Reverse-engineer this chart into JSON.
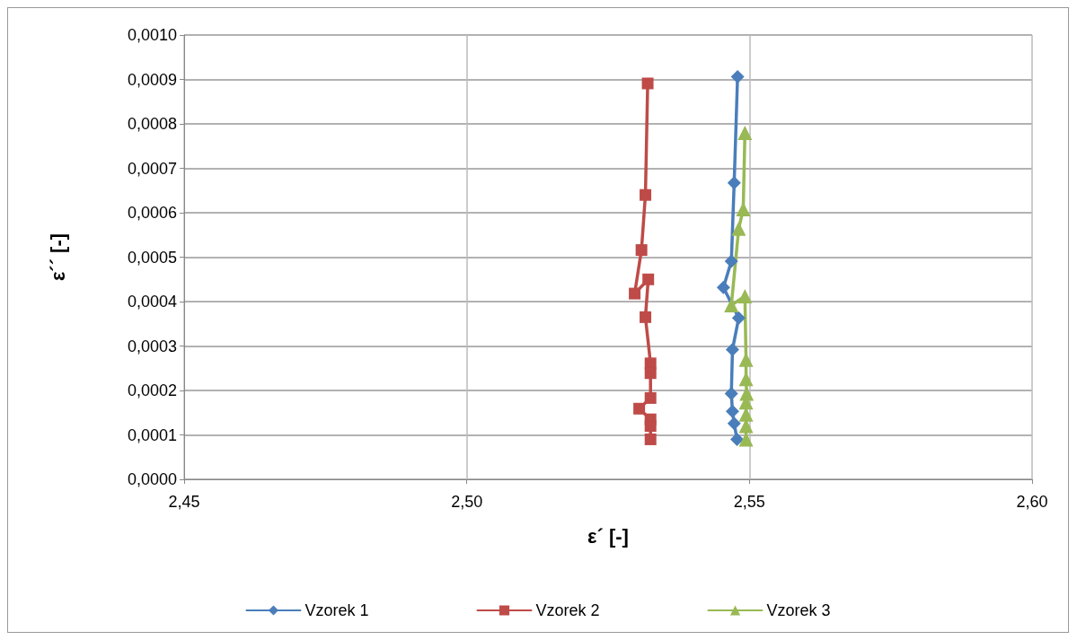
{
  "chart_data": {
    "type": "line",
    "xlabel": "ε´ [-]",
    "ylabel": "ε´´ [-]",
    "xlim": [
      2.45,
      2.6
    ],
    "xticks": [
      {
        "value": 2.45,
        "label": "2,45"
      },
      {
        "value": 2.5,
        "label": "2,50"
      },
      {
        "value": 2.55,
        "label": "2,55"
      },
      {
        "value": 2.6,
        "label": "2,60"
      }
    ],
    "ylim": [
      0,
      0.001
    ],
    "yticks": [
      {
        "value": 0,
        "label": "0,0000"
      },
      {
        "value": 0.0001,
        "label": "0,0001"
      },
      {
        "value": 0.0002,
        "label": "0,0002"
      },
      {
        "value": 0.0003,
        "label": "0,0003"
      },
      {
        "value": 0.0004,
        "label": "0,0004"
      },
      {
        "value": 0.0005,
        "label": "0,0005"
      },
      {
        "value": 0.0006,
        "label": "0,0006"
      },
      {
        "value": 0.0007,
        "label": "0,0007"
      },
      {
        "value": 0.0008,
        "label": "0,0008"
      },
      {
        "value": 0.0009,
        "label": "0,0009"
      },
      {
        "value": 0.001,
        "label": "0,0010"
      }
    ],
    "grid": true,
    "legend": "bottom",
    "series": [
      {
        "name": "Vzorek 1",
        "color": "#4a7ebb",
        "marker": "diamond",
        "x": [
          2.5479,
          2.5473,
          2.5468,
          2.5454,
          2.5481,
          2.547,
          2.5468,
          2.547,
          2.5473,
          2.5478
        ],
        "values": [
          0.000906,
          0.000667,
          0.000491,
          0.000432,
          0.000363,
          0.000292,
          0.000193,
          0.000153,
          0.000126,
          9e-05
        ]
      },
      {
        "name": "Vzorek 2",
        "color": "#be4b48",
        "marker": "square",
        "x": [
          2.532,
          2.5316,
          2.5309,
          2.5297,
          2.5321,
          2.5316,
          2.5325,
          2.5325,
          2.5325,
          2.5305,
          2.5325,
          2.5325,
          2.5325
        ],
        "values": [
          0.000891,
          0.00064,
          0.000516,
          0.000418,
          0.00045,
          0.000365,
          0.000261,
          0.000239,
          0.000183,
          0.000159,
          0.000135,
          0.00012,
          9e-05
        ]
      },
      {
        "name": "Vzorek 3",
        "color": "#98b954",
        "marker": "triangle",
        "x": [
          2.5492,
          2.5489,
          2.5481,
          2.5468,
          2.5492,
          2.5494,
          2.5494,
          2.5495,
          2.5494,
          2.5494,
          2.5494,
          2.5494
        ],
        "values": [
          0.00078,
          0.000608,
          0.000564,
          0.000392,
          0.000412,
          0.000269,
          0.000226,
          0.000193,
          0.000173,
          0.000146,
          0.00012,
          9e-05
        ]
      }
    ]
  }
}
